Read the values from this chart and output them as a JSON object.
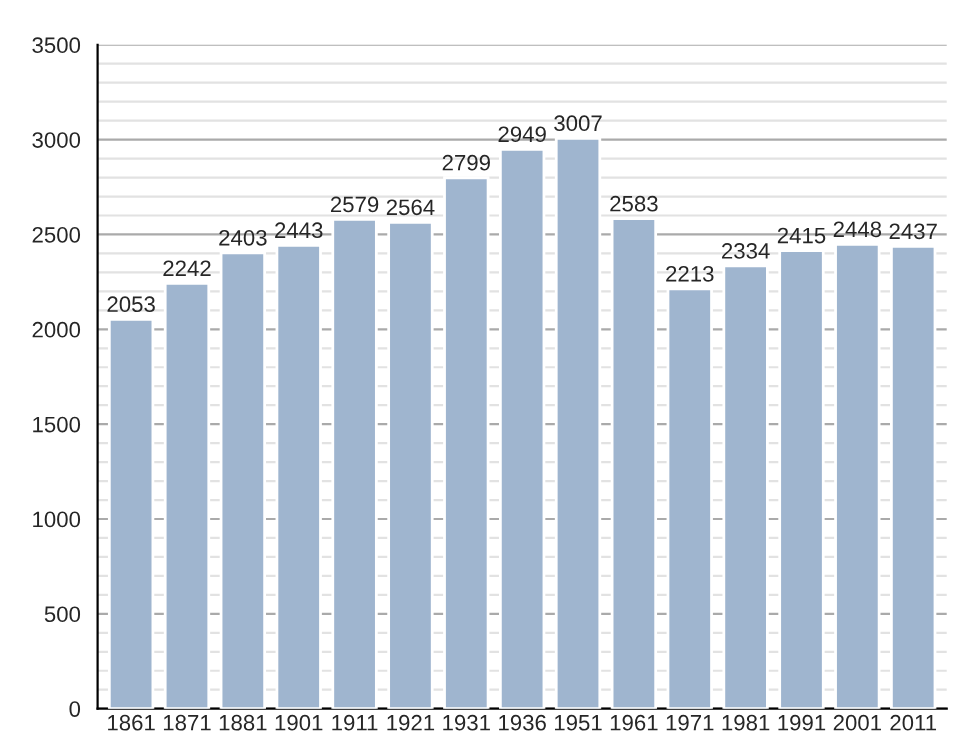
{
  "chart_data": {
    "type": "bar",
    "categories": [
      "1861",
      "1871",
      "1881",
      "1901",
      "1911",
      "1921",
      "1931",
      "1936",
      "1951",
      "1961",
      "1971",
      "1981",
      "1991",
      "2001",
      "2011"
    ],
    "values": [
      2053,
      2242,
      2403,
      2443,
      2579,
      2564,
      2799,
      2949,
      3007,
      2583,
      2213,
      2334,
      2415,
      2448,
      2437
    ],
    "color": "#9fb5cf",
    "ylim": [
      0,
      3500
    ],
    "yticks": [
      0,
      {
        "value": 100,
        "label": null
      },
      {
        "value": 200,
        "label": null
      },
      {
        "value": 300,
        "label": null
      },
      {
        "value": 400,
        "label": null
      },
      500,
      {
        "value": 600,
        "label": null
      },
      {
        "value": 700,
        "label": null
      },
      {
        "value": 800,
        "label": null
      },
      {
        "value": 900,
        "label": null
      },
      1000,
      {
        "value": 1100,
        "label": null
      },
      {
        "value": 1200,
        "label": null
      },
      {
        "value": 1300,
        "label": null
      },
      {
        "value": 1400,
        "label": null
      },
      1500,
      {
        "value": 1600,
        "label": null
      },
      {
        "value": 1700,
        "label": null
      },
      {
        "value": 1800,
        "label": null
      },
      {
        "value": 1900,
        "label": null
      },
      2000,
      {
        "value": 2100,
        "label": null
      },
      {
        "value": 2200,
        "label": null
      },
      {
        "value": 2300,
        "label": null
      },
      {
        "value": 2400,
        "label": null
      },
      2500,
      {
        "value": 2600,
        "label": null
      },
      {
        "value": 2700,
        "label": null
      },
      {
        "value": 2800,
        "label": null
      },
      {
        "value": 2900,
        "label": null
      },
      3000,
      {
        "value": 3100,
        "label": null
      },
      {
        "value": 3200,
        "label": null
      },
      {
        "value": 3300,
        "label": null
      },
      {
        "value": 3400,
        "label": null
      },
      3500
    ],
    "grid": "y",
    "data_labels": true
  }
}
